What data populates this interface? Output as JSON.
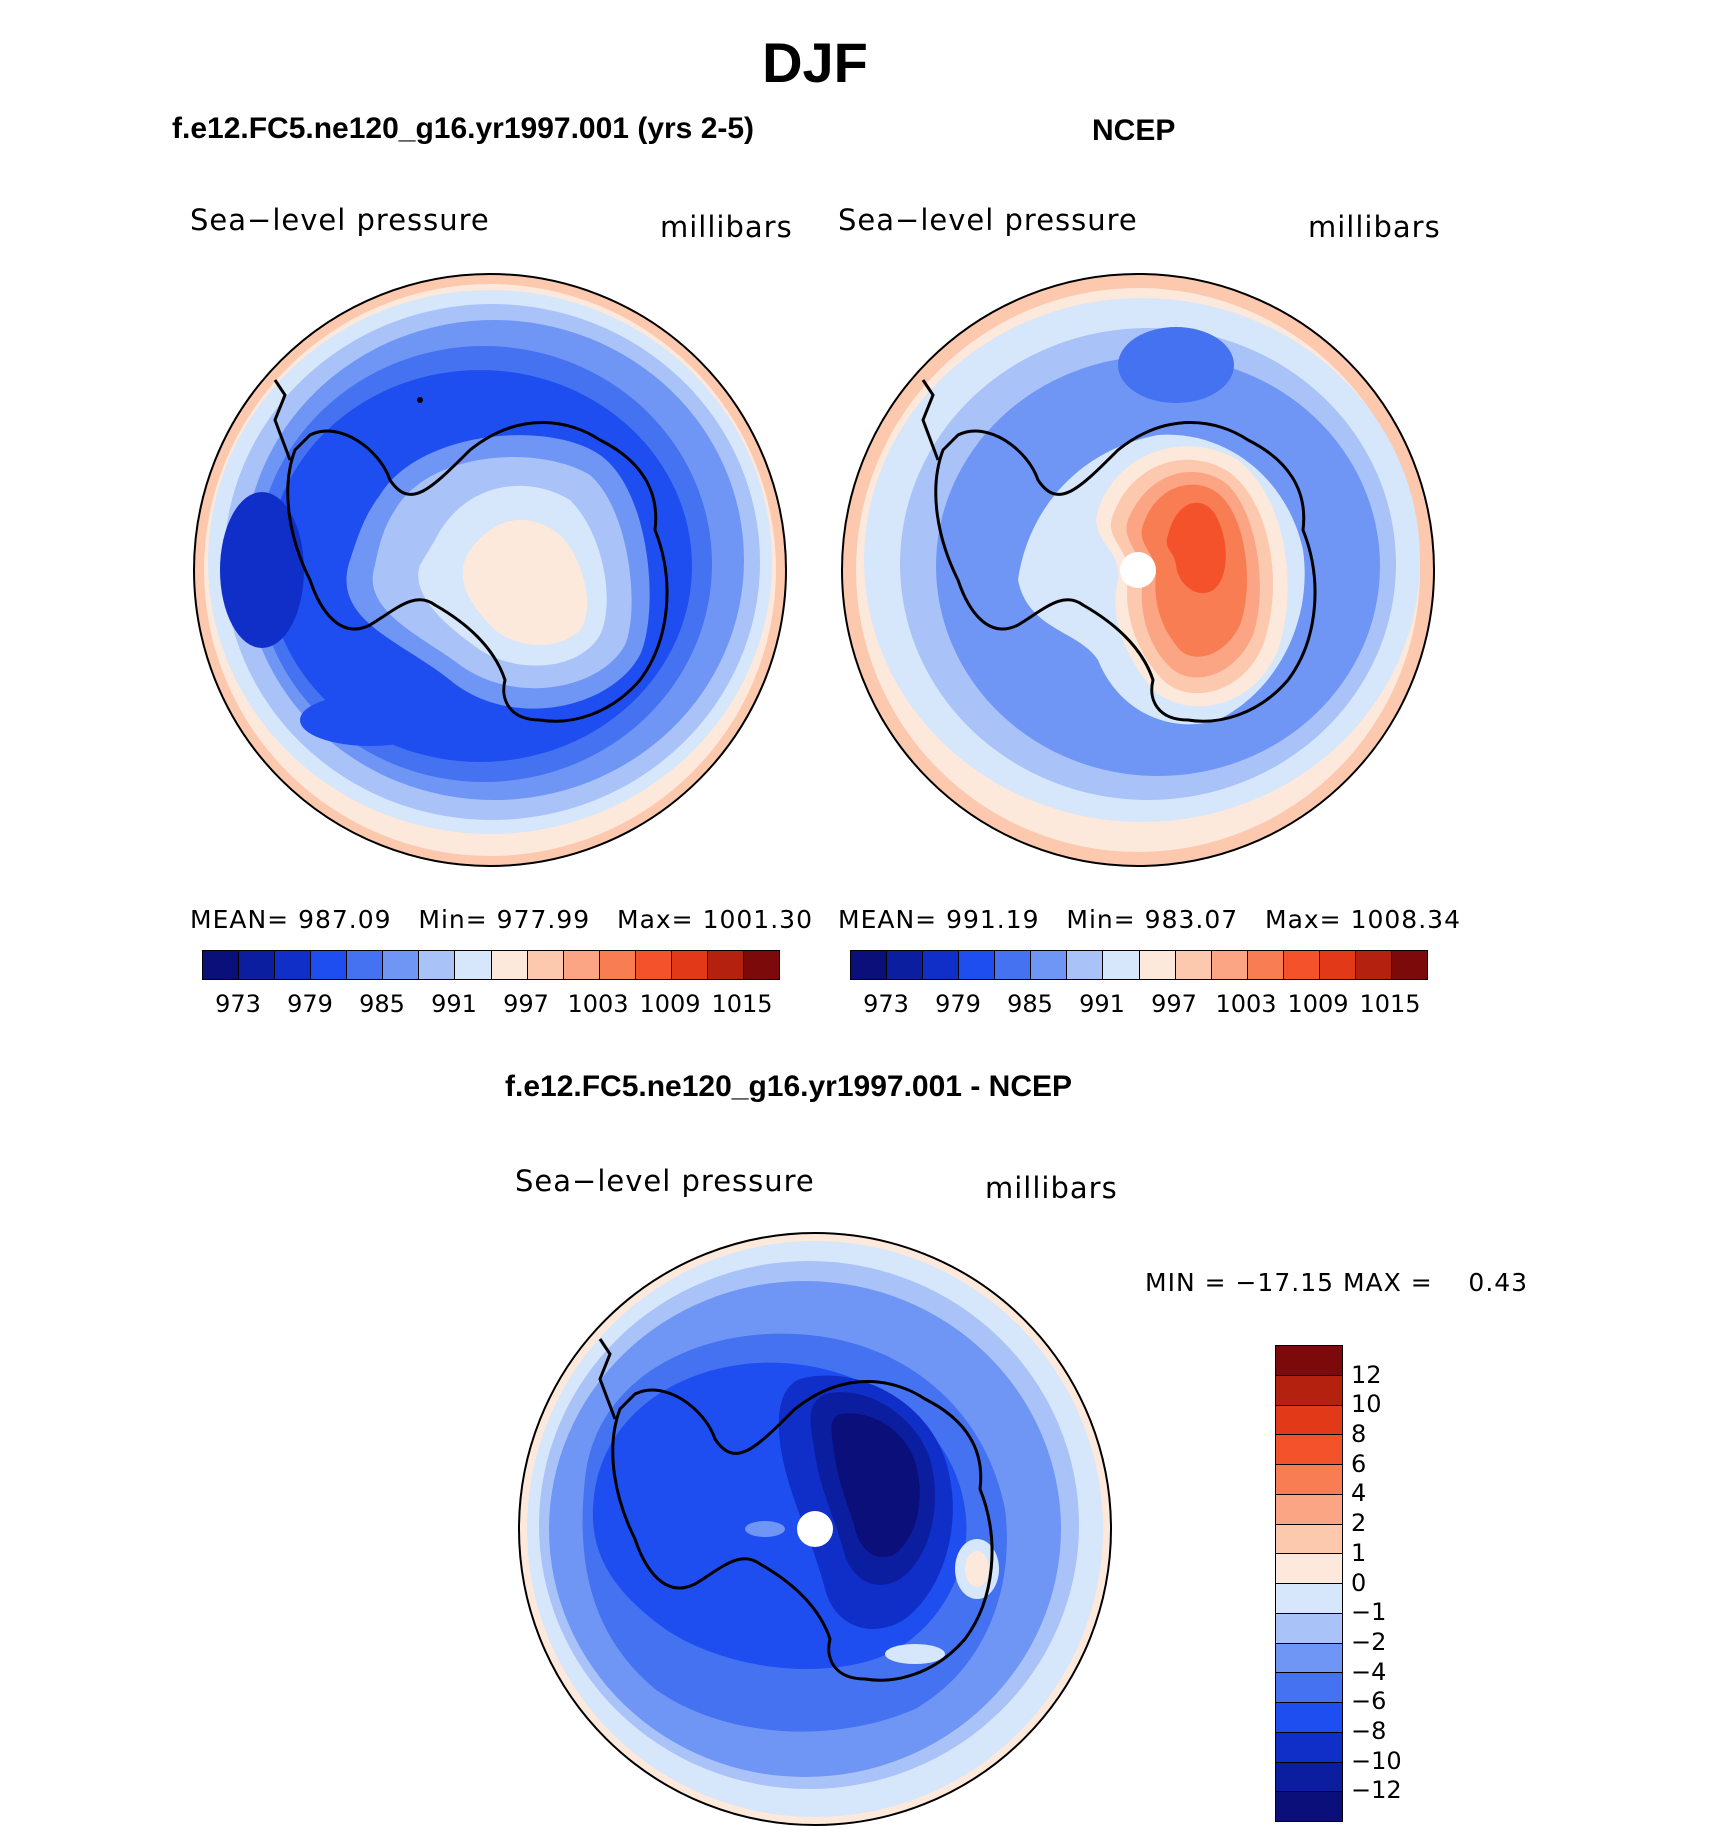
{
  "page": {
    "title": "DJF",
    "left_title": "f.e12.FC5.ne120_g16.yr1997.001 (yrs 2-5)",
    "right_title": "NCEP",
    "diff_title": "f.e12.FC5.ne120_g16.yr1997.001 - NCEP"
  },
  "colors": {
    "abs_scale": [
      "#0a0f7a",
      "#0c1ea0",
      "#0f2fc8",
      "#1f4ef0",
      "#4472f0",
      "#6f96f4",
      "#a9c2f8",
      "#d6e6fb",
      "#fde8dc",
      "#fcc8ae",
      "#fba584",
      "#f87d52",
      "#f4522a",
      "#e23a18",
      "#b4220f",
      "#7d0a0a"
    ],
    "diff_scale": [
      "#7d0a0a",
      "#b4220f",
      "#e23a18",
      "#f4522a",
      "#f87d52",
      "#fba584",
      "#fcc8ae",
      "#fde8dc",
      "#d6e6fb",
      "#a9c2f8",
      "#6f96f4",
      "#4472f0",
      "#1f4ef0",
      "#0f2fc8",
      "#0c1ea0",
      "#0a0f7a"
    ],
    "coast": "#000000"
  },
  "panels": {
    "model": {
      "variable": "Sea−level pressure",
      "units": "millibars",
      "mean_label": "MEAN=",
      "mean": "987.09",
      "min_label": "Min=",
      "min": "977.99",
      "max_label": "Max=",
      "max": "1001.30",
      "ticks": [
        "973",
        "979",
        "985",
        "991",
        "997",
        "1003",
        "1009",
        "1015"
      ]
    },
    "ncep": {
      "variable": "Sea−level pressure",
      "units": "millibars",
      "mean_label": "MEAN=",
      "mean": "991.19",
      "min_label": "Min=",
      "min": "983.07",
      "max_label": "Max=",
      "max": "1008.34",
      "ticks": [
        "973",
        "979",
        "985",
        "991",
        "997",
        "1003",
        "1009",
        "1015"
      ]
    },
    "diff": {
      "variable": "Sea−level pressure",
      "units": "millibars",
      "minmax": "MIN = −17.15 MAX =    0.43",
      "ticks": [
        "12",
        "10",
        "8",
        "6",
        "4",
        "2",
        "1",
        "0",
        "−1",
        "−2",
        "−4",
        "−6",
        "−8",
        "−10",
        "−12"
      ]
    }
  }
}
